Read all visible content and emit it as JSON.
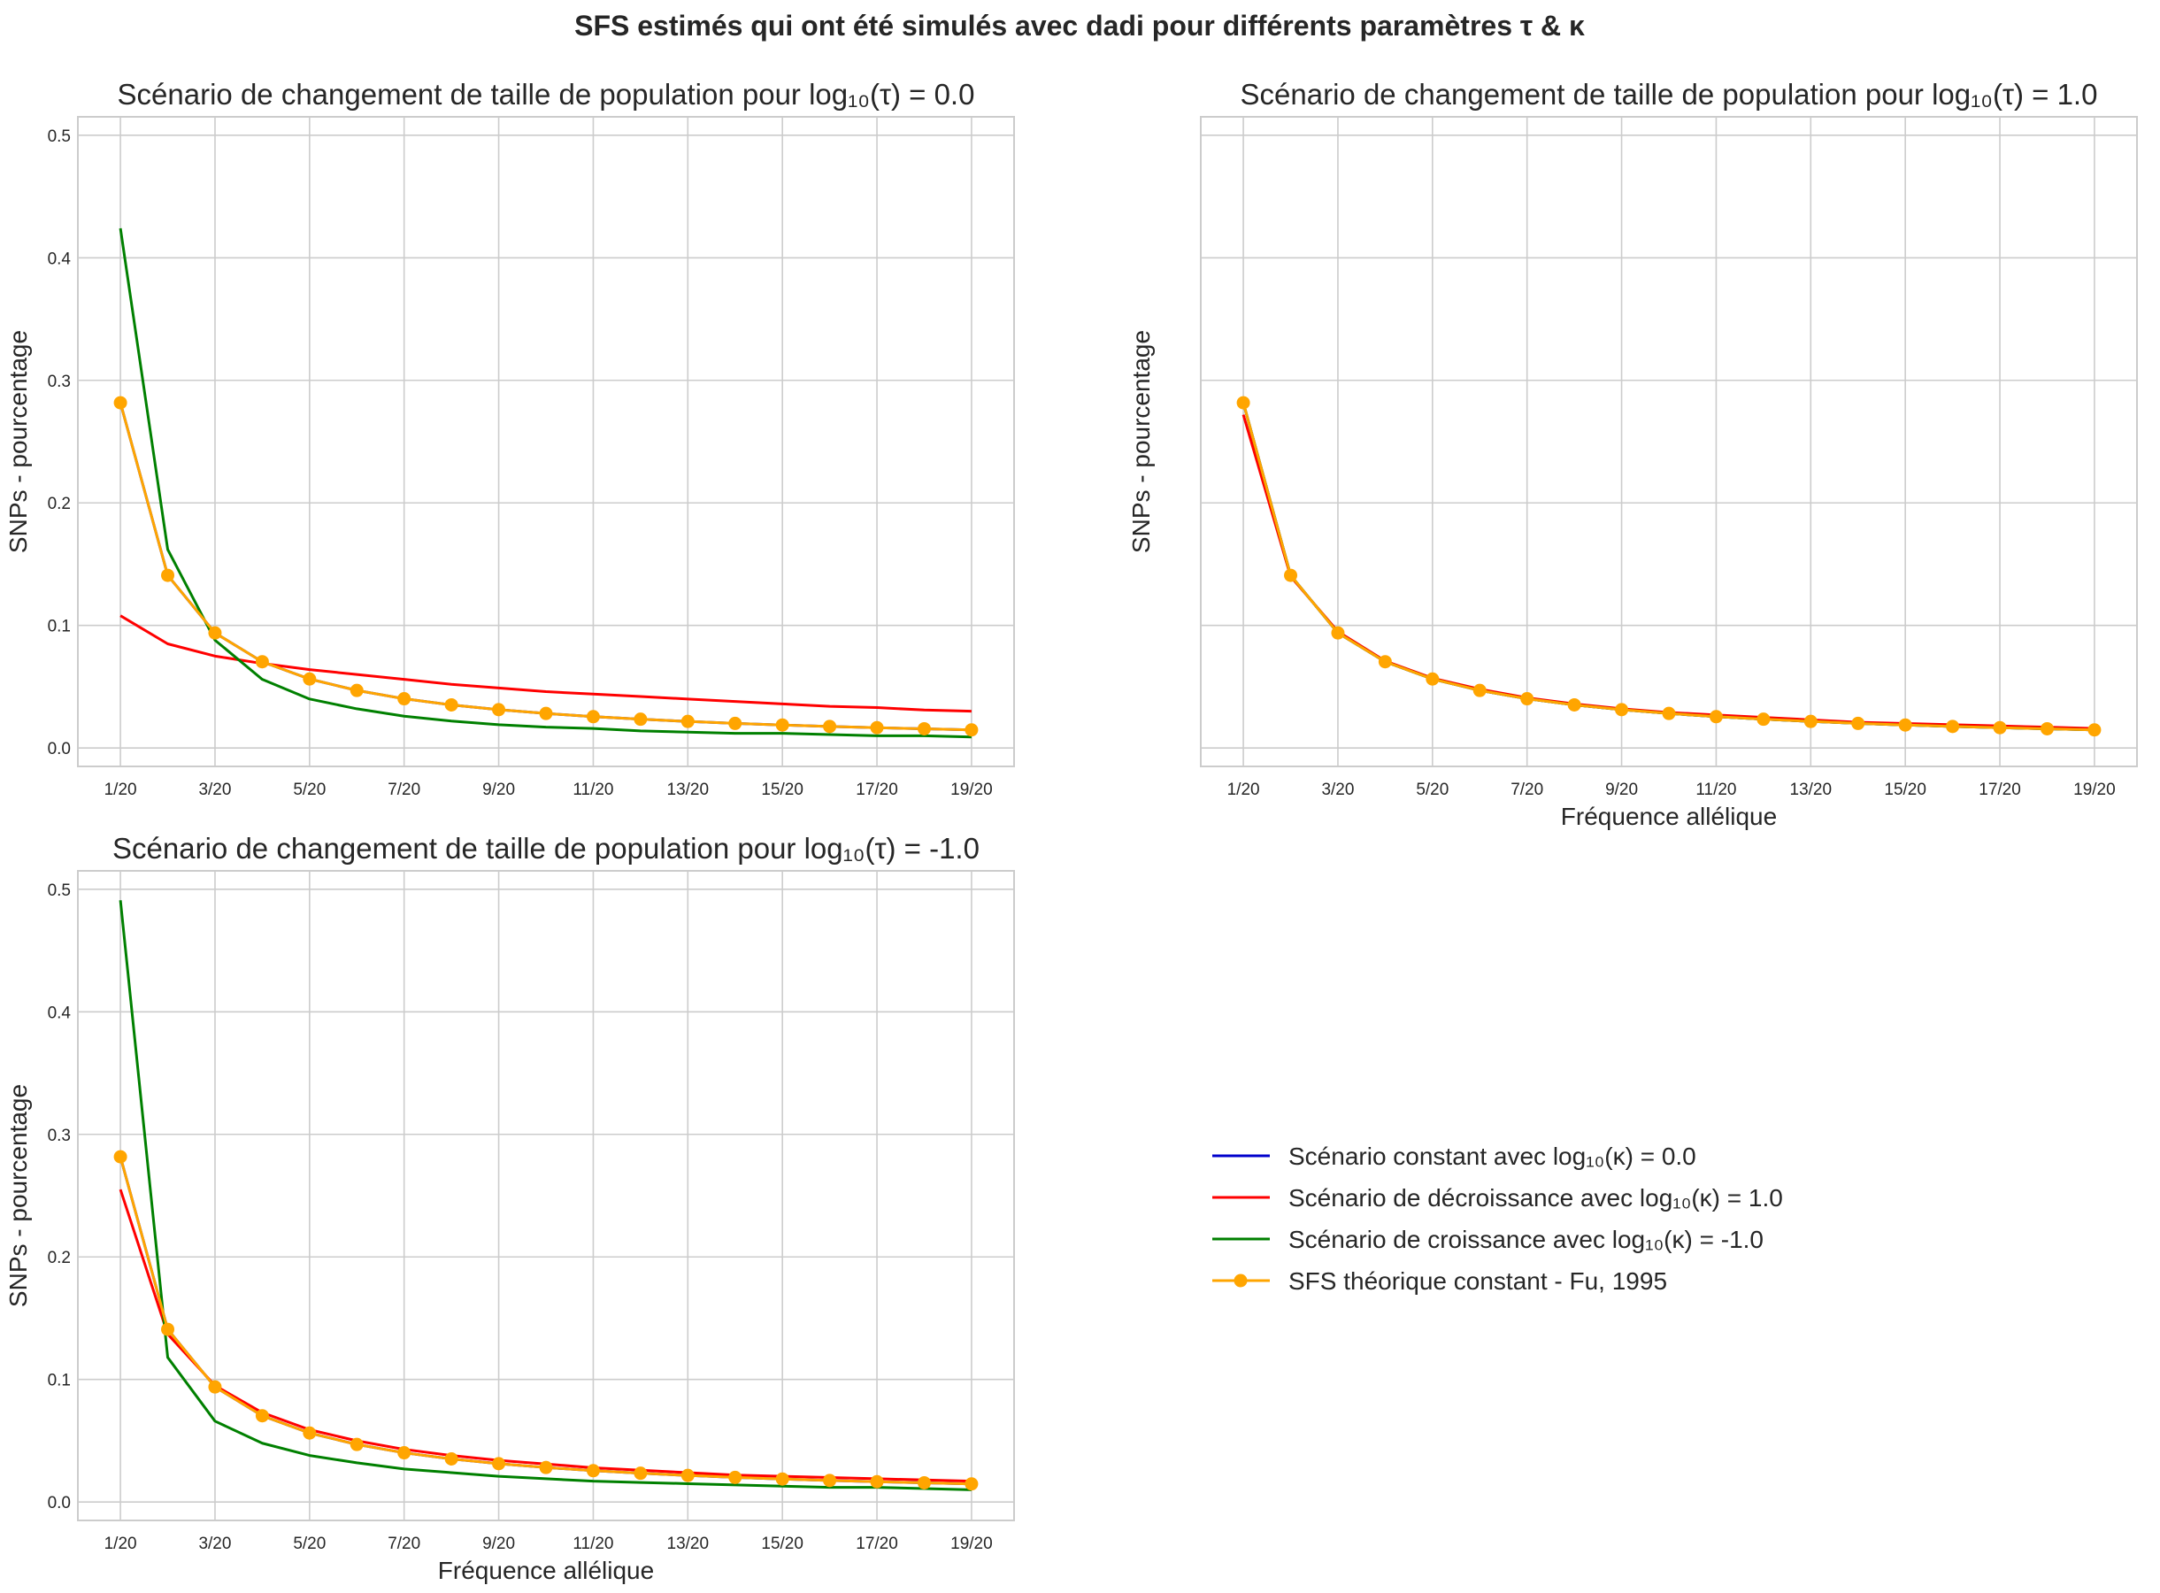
{
  "figure_title": "SFS estimés qui ont été simulés avec dadi pour différents paramètres τ & κ",
  "colors": {
    "constant": "#0000cc",
    "decroissance": "#ff0000",
    "croissance": "#008000",
    "theorique": "#ffa500",
    "grid": "#cccccc",
    "frame": "#cccccc"
  },
  "legend": {
    "placement": "lower-right empty panel",
    "entries": [
      {
        "label": "Scénario constant avec log₁₀(κ) = 0.0",
        "color": "#0000cc",
        "marker": false
      },
      {
        "label": "Scénario de décroissance avec log₁₀(κ) = 1.0",
        "color": "#ff0000",
        "marker": false
      },
      {
        "label": "Scénario de croissance avec log₁₀(κ) = -1.0",
        "color": "#008000",
        "marker": false
      },
      {
        "label": "SFS théorique constant - Fu, 1995",
        "color": "#ffa500",
        "marker": true
      }
    ]
  },
  "chart_data": [
    {
      "type": "line",
      "title": "Scénario de changement de taille de population pour log₁₀(τ) = 0.0",
      "xlabel": "",
      "ylabel": "SNPs - pourcentage",
      "ylim": [
        -0.015,
        0.515
      ],
      "yticks": [
        "0.0",
        "0.1",
        "0.2",
        "0.3",
        "0.4",
        "0.5"
      ],
      "x": [
        "1/20",
        "2/20",
        "3/20",
        "4/20",
        "5/20",
        "6/20",
        "7/20",
        "8/20",
        "9/20",
        "10/20",
        "11/20",
        "12/20",
        "13/20",
        "14/20",
        "15/20",
        "16/20",
        "17/20",
        "18/20",
        "19/20"
      ],
      "xtick_labels": [
        "1/20",
        "3/20",
        "5/20",
        "7/20",
        "9/20",
        "11/20",
        "13/20",
        "15/20",
        "17/20",
        "19/20"
      ],
      "grid": true,
      "series": [
        {
          "name": "Scénario constant avec log₁₀(κ) = 0.0",
          "color": "#0000cc",
          "values": [
            0.2817,
            0.1409,
            0.0939,
            0.0704,
            0.0563,
            0.047,
            0.0402,
            0.0352,
            0.0313,
            0.0282,
            0.0256,
            0.0235,
            0.0217,
            0.0201,
            0.0188,
            0.0176,
            0.0166,
            0.0157,
            0.0148
          ]
        },
        {
          "name": "Scénario de décroissance avec log₁₀(κ) = 1.0",
          "color": "#ff0000",
          "values": [
            0.108,
            0.085,
            0.075,
            0.069,
            0.064,
            0.06,
            0.056,
            0.052,
            0.049,
            0.046,
            0.044,
            0.042,
            0.04,
            0.038,
            0.036,
            0.034,
            0.033,
            0.031,
            0.03
          ]
        },
        {
          "name": "Scénario de croissance avec log₁₀(κ) = -1.0",
          "color": "#008000",
          "values": [
            0.424,
            0.162,
            0.088,
            0.056,
            0.04,
            0.032,
            0.026,
            0.022,
            0.019,
            0.017,
            0.016,
            0.014,
            0.013,
            0.012,
            0.012,
            0.011,
            0.01,
            0.01,
            0.009
          ]
        },
        {
          "name": "SFS théorique constant - Fu, 1995",
          "color": "#ffa500",
          "marker": "o",
          "values": [
            0.2817,
            0.1409,
            0.0939,
            0.0704,
            0.0563,
            0.047,
            0.0402,
            0.0352,
            0.0313,
            0.0282,
            0.0256,
            0.0235,
            0.0217,
            0.0201,
            0.0188,
            0.0176,
            0.0166,
            0.0157,
            0.0148
          ]
        }
      ]
    },
    {
      "type": "line",
      "title": "Scénario de changement de taille de population pour log₁₀(τ) = 1.0",
      "xlabel": "Fréquence allélique",
      "ylabel": "SNPs - pourcentage",
      "ylim": [
        -0.015,
        0.515
      ],
      "yticks": [],
      "x": [
        "1/20",
        "2/20",
        "3/20",
        "4/20",
        "5/20",
        "6/20",
        "7/20",
        "8/20",
        "9/20",
        "10/20",
        "11/20",
        "12/20",
        "13/20",
        "14/20",
        "15/20",
        "16/20",
        "17/20",
        "18/20",
        "19/20"
      ],
      "xtick_labels": [
        "1/20",
        "3/20",
        "5/20",
        "7/20",
        "9/20",
        "11/20",
        "13/20",
        "15/20",
        "17/20",
        "19/20"
      ],
      "grid": true,
      "series": [
        {
          "name": "Scénario constant avec log₁₀(κ) = 0.0",
          "color": "#0000cc",
          "values": [
            0.2817,
            0.1409,
            0.0939,
            0.0704,
            0.0563,
            0.047,
            0.0402,
            0.0352,
            0.0313,
            0.0282,
            0.0256,
            0.0235,
            0.0217,
            0.0201,
            0.0188,
            0.0176,
            0.0166,
            0.0157,
            0.0148
          ]
        },
        {
          "name": "Scénario de décroissance avec log₁₀(κ) = 1.0",
          "color": "#ff0000",
          "values": [
            0.272,
            0.14,
            0.095,
            0.071,
            0.057,
            0.048,
            0.041,
            0.036,
            0.032,
            0.029,
            0.027,
            0.025,
            0.023,
            0.021,
            0.02,
            0.019,
            0.018,
            0.017,
            0.016
          ]
        },
        {
          "name": "Scénario de croissance avec log₁₀(κ) = -1.0",
          "color": "#008000",
          "values": [
            0.2817,
            0.1409,
            0.0939,
            0.0704,
            0.0563,
            0.047,
            0.0402,
            0.0352,
            0.0313,
            0.0282,
            0.0256,
            0.0235,
            0.0217,
            0.0201,
            0.0188,
            0.0176,
            0.0166,
            0.0157,
            0.0148
          ]
        },
        {
          "name": "SFS théorique constant - Fu, 1995",
          "color": "#ffa500",
          "marker": "o",
          "values": [
            0.2817,
            0.1409,
            0.0939,
            0.0704,
            0.0563,
            0.047,
            0.0402,
            0.0352,
            0.0313,
            0.0282,
            0.0256,
            0.0235,
            0.0217,
            0.0201,
            0.0188,
            0.0176,
            0.0166,
            0.0157,
            0.0148
          ]
        }
      ]
    },
    {
      "type": "line",
      "title": "Scénario de changement de taille de population pour log₁₀(τ) = -1.0",
      "xlabel": "Fréquence allélique",
      "ylabel": "SNPs - pourcentage",
      "ylim": [
        -0.015,
        0.515
      ],
      "yticks": [
        "0.0",
        "0.1",
        "0.2",
        "0.3",
        "0.4",
        "0.5"
      ],
      "x": [
        "1/20",
        "2/20",
        "3/20",
        "4/20",
        "5/20",
        "6/20",
        "7/20",
        "8/20",
        "9/20",
        "10/20",
        "11/20",
        "12/20",
        "13/20",
        "14/20",
        "15/20",
        "16/20",
        "17/20",
        "18/20",
        "19/20"
      ],
      "xtick_labels": [
        "1/20",
        "3/20",
        "5/20",
        "7/20",
        "9/20",
        "11/20",
        "13/20",
        "15/20",
        "17/20",
        "19/20"
      ],
      "grid": true,
      "series": [
        {
          "name": "Scénario constant avec log₁₀(κ) = 0.0",
          "color": "#0000cc",
          "values": [
            0.2817,
            0.1409,
            0.0939,
            0.0704,
            0.0563,
            0.047,
            0.0402,
            0.0352,
            0.0313,
            0.0282,
            0.0256,
            0.0235,
            0.0217,
            0.0201,
            0.0188,
            0.0176,
            0.0166,
            0.0157,
            0.0148
          ]
        },
        {
          "name": "Scénario de décroissance avec log₁₀(κ) = 1.0",
          "color": "#ff0000",
          "values": [
            0.255,
            0.137,
            0.095,
            0.073,
            0.059,
            0.05,
            0.043,
            0.038,
            0.034,
            0.031,
            0.028,
            0.026,
            0.024,
            0.022,
            0.021,
            0.02,
            0.019,
            0.018,
            0.017
          ]
        },
        {
          "name": "Scénario de croissance avec log₁₀(κ) = -1.0",
          "color": "#008000",
          "values": [
            0.491,
            0.118,
            0.066,
            0.048,
            0.038,
            0.032,
            0.027,
            0.024,
            0.021,
            0.019,
            0.017,
            0.016,
            0.015,
            0.014,
            0.013,
            0.012,
            0.012,
            0.011,
            0.01
          ]
        },
        {
          "name": "SFS théorique constant - Fu, 1995",
          "color": "#ffa500",
          "marker": "o",
          "values": [
            0.2817,
            0.1409,
            0.0939,
            0.0704,
            0.0563,
            0.047,
            0.0402,
            0.0352,
            0.0313,
            0.0282,
            0.0256,
            0.0235,
            0.0217,
            0.0201,
            0.0188,
            0.0176,
            0.0166,
            0.0157,
            0.0148
          ]
        }
      ]
    }
  ]
}
